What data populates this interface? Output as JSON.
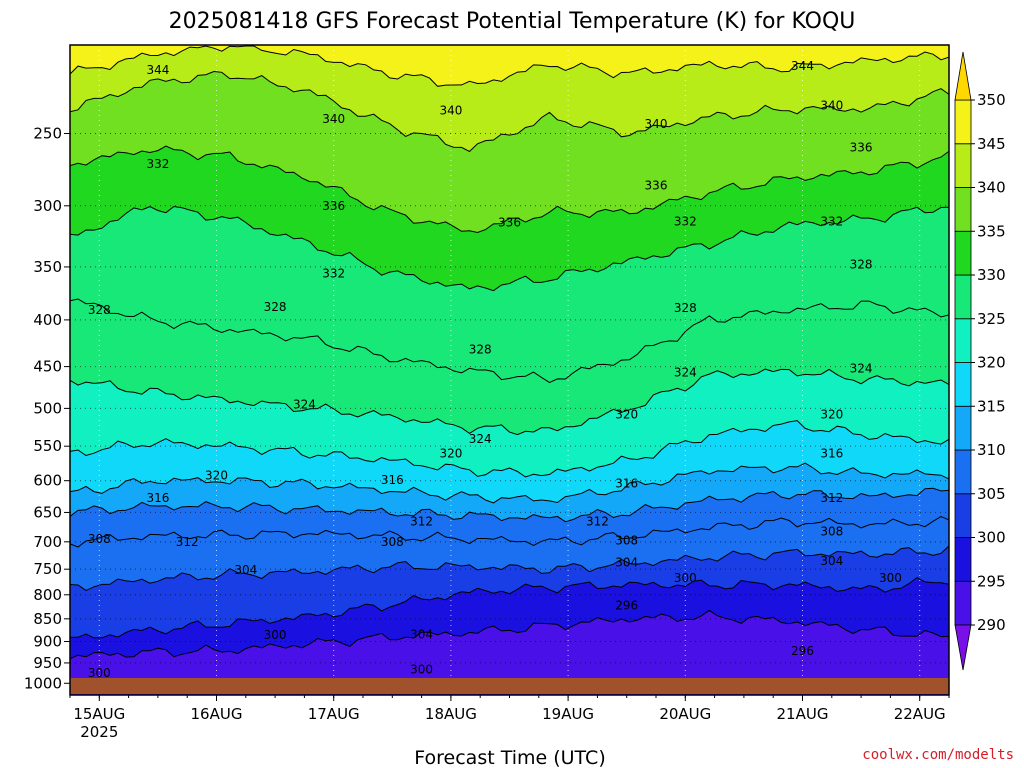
{
  "chart_data": {
    "type": "heatmap",
    "title": "2025081418 GFS Forecast Potential Temperature (K) for KOQU",
    "xlabel": "Forecast Time (UTC)",
    "ylabel": "",
    "credit": "coolwx.com/modelts",
    "y_scale": "log",
    "ylim": [
      200,
      1030
    ],
    "y_ticks": [
      250,
      300,
      350,
      400,
      450,
      500,
      550,
      600,
      650,
      700,
      750,
      800,
      850,
      900,
      950,
      1000
    ],
    "x_ticks": [
      {
        "time": "2025-08-15 00Z",
        "label": "15AUG",
        "sublabel": "2025"
      },
      {
        "time": "2025-08-16 00Z",
        "label": "16AUG"
      },
      {
        "time": "2025-08-17 00Z",
        "label": "17AUG"
      },
      {
        "time": "2025-08-18 00Z",
        "label": "18AUG"
      },
      {
        "time": "2025-08-19 00Z",
        "label": "19AUG"
      },
      {
        "time": "2025-08-20 00Z",
        "label": "20AUG"
      },
      {
        "time": "2025-08-21 00Z",
        "label": "21AUG"
      },
      {
        "time": "2025-08-22 00Z",
        "label": "22AUG"
      }
    ],
    "colorbar": {
      "levels": [
        290,
        295,
        300,
        305,
        310,
        315,
        320,
        325,
        330,
        335,
        340,
        345,
        350
      ],
      "labels": [
        "290",
        "295",
        "300",
        "305",
        "310",
        "315",
        "320",
        "325",
        "330",
        "335",
        "340",
        "345",
        "350"
      ],
      "colors": [
        "#7a10e8",
        "#4a10e8",
        "#1a10e0",
        "#1a3ee6",
        "#1a70f0",
        "#14a8f8",
        "#10d8f8",
        "#10f0c0",
        "#18e878",
        "#20d820",
        "#70e020",
        "#b8ec18",
        "#f4f218",
        "#ffd800"
      ]
    },
    "isentropes": [
      {
        "theta": 296,
        "pressure": [
          935,
          925,
          920,
          905,
          890,
          880,
          865,
          850,
          845,
          855,
          875,
          890
        ]
      },
      {
        "theta": 300,
        "pressure": [
          895,
          875,
          860,
          845,
          820,
          795,
          785,
          780,
          780,
          780,
          790,
          770
        ]
      },
      {
        "theta": 304,
        "pressure": [
          785,
          770,
          760,
          755,
          745,
          745,
          750,
          740,
          728,
          720,
          722,
          715
        ]
      },
      {
        "theta": 308,
        "pressure": [
          700,
          690,
          688,
          685,
          690,
          695,
          700,
          690,
          675,
          665,
          670,
          665
        ]
      },
      {
        "theta": 312,
        "pressure": [
          650,
          640,
          640,
          645,
          650,
          655,
          660,
          650,
          630,
          620,
          625,
          615
        ]
      },
      {
        "theta": 316,
        "pressure": [
          620,
          600,
          600,
          605,
          615,
          625,
          630,
          610,
          585,
          580,
          590,
          590
        ]
      },
      {
        "theta": 320,
        "pressure": [
          560,
          545,
          550,
          560,
          570,
          585,
          590,
          570,
          535,
          520,
          535,
          545
        ]
      },
      {
        "theta": 324,
        "pressure": [
          465,
          480,
          490,
          500,
          510,
          525,
          530,
          500,
          460,
          455,
          465,
          470
        ]
      },
      {
        "theta": 328,
        "pressure": [
          380,
          400,
          410,
          420,
          440,
          455,
          465,
          440,
          400,
          390,
          385,
          395
        ]
      },
      {
        "theta": 332,
        "pressure": [
          325,
          300,
          310,
          330,
          355,
          370,
          360,
          345,
          330,
          315,
          310,
          300
        ]
      },
      {
        "theta": 336,
        "pressure": [
          270,
          260,
          265,
          280,
          305,
          320,
          305,
          305,
          290,
          280,
          275,
          265
        ]
      },
      {
        "theta": 340,
        "pressure": [
          235,
          220,
          215,
          225,
          245,
          260,
          240,
          250,
          240,
          235,
          235,
          225
        ]
      },
      {
        "theta": 344,
        "pressure": [
          215,
          205,
          200,
          205,
          215,
          222,
          210,
          215,
          210,
          212,
          208,
          205
        ]
      }
    ],
    "contour_labels": [
      {
        "text": "344",
        "time": "2025-08-15 12Z",
        "p": 213
      },
      {
        "text": "340",
        "time": "2025-08-17 00Z",
        "p": 241
      },
      {
        "text": "340",
        "time": "2025-08-18 00Z",
        "p": 236
      },
      {
        "text": "340",
        "time": "2025-08-19 18Z",
        "p": 244
      },
      {
        "text": "344",
        "time": "2025-08-21 00Z",
        "p": 211
      },
      {
        "text": "340",
        "time": "2025-08-21 06Z",
        "p": 233
      },
      {
        "text": "336",
        "time": "2025-08-21 12Z",
        "p": 259
      },
      {
        "text": "332",
        "time": "2025-08-15 12Z",
        "p": 270
      },
      {
        "text": "336",
        "time": "2025-08-17 00Z",
        "p": 300
      },
      {
        "text": "336",
        "time": "2025-08-18 12Z",
        "p": 313
      },
      {
        "text": "336",
        "time": "2025-08-19 18Z",
        "p": 285
      },
      {
        "text": "332",
        "time": "2025-08-20 00Z",
        "p": 312
      },
      {
        "text": "332",
        "time": "2025-08-21 06Z",
        "p": 312
      },
      {
        "text": "332",
        "time": "2025-08-17 00Z",
        "p": 356
      },
      {
        "text": "328",
        "time": "2025-08-15 00Z",
        "p": 390
      },
      {
        "text": "328",
        "time": "2025-08-16 12Z",
        "p": 387
      },
      {
        "text": "328",
        "time": "2025-08-18 06Z",
        "p": 431
      },
      {
        "text": "328",
        "time": "2025-08-20 00Z",
        "p": 388
      },
      {
        "text": "328",
        "time": "2025-08-21 12Z",
        "p": 348
      },
      {
        "text": "324",
        "time": "2025-08-16 18Z",
        "p": 495
      },
      {
        "text": "324",
        "time": "2025-08-18 06Z",
        "p": 540
      },
      {
        "text": "324",
        "time": "2025-08-20 00Z",
        "p": 457
      },
      {
        "text": "324",
        "time": "2025-08-21 12Z",
        "p": 452
      },
      {
        "text": "320",
        "time": "2025-08-18 00Z",
        "p": 560
      },
      {
        "text": "320",
        "time": "2025-08-19 12Z",
        "p": 508
      },
      {
        "text": "320",
        "time": "2025-08-21 06Z",
        "p": 508
      },
      {
        "text": "320",
        "time": "2025-08-16 00Z",
        "p": 592
      },
      {
        "text": "316",
        "time": "2025-08-17 12Z",
        "p": 599
      },
      {
        "text": "316",
        "time": "2025-08-19 12Z",
        "p": 604
      },
      {
        "text": "316",
        "time": "2025-08-21 06Z",
        "p": 560
      },
      {
        "text": "316",
        "time": "2025-08-15 12Z",
        "p": 627
      },
      {
        "text": "312",
        "time": "2025-08-17 18Z",
        "p": 665
      },
      {
        "text": "312",
        "time": "2025-08-19 06Z",
        "p": 665
      },
      {
        "text": "312",
        "time": "2025-08-21 06Z",
        "p": 627
      },
      {
        "text": "308",
        "time": "2025-08-15 00Z",
        "p": 695
      },
      {
        "text": "312",
        "time": "2025-08-15 18Z",
        "p": 700
      },
      {
        "text": "308",
        "time": "2025-08-17 12Z",
        "p": 700
      },
      {
        "text": "308",
        "time": "2025-08-19 12Z",
        "p": 698
      },
      {
        "text": "308",
        "time": "2025-08-21 06Z",
        "p": 682
      },
      {
        "text": "304",
        "time": "2025-08-16 06Z",
        "p": 752
      },
      {
        "text": "304",
        "time": "2025-08-19 12Z",
        "p": 737
      },
      {
        "text": "304",
        "time": "2025-08-21 06Z",
        "p": 735
      },
      {
        "text": "300",
        "time": "2025-08-20 00Z",
        "p": 767
      },
      {
        "text": "300",
        "time": "2025-08-21 18Z",
        "p": 767
      },
      {
        "text": "296",
        "time": "2025-08-19 12Z",
        "p": 822
      },
      {
        "text": "300",
        "time": "2025-08-16 12Z",
        "p": 885
      },
      {
        "text": "304",
        "time": "2025-08-17 18Z",
        "p": 884
      },
      {
        "text": "300",
        "time": "2025-08-17 18Z",
        "p": 966
      },
      {
        "text": "296",
        "time": "2025-08-21 00Z",
        "p": 922
      },
      {
        "text": "300",
        "time": "2025-08-15 00Z",
        "p": 975
      }
    ],
    "grid": true,
    "legend": "right colorbar"
  }
}
